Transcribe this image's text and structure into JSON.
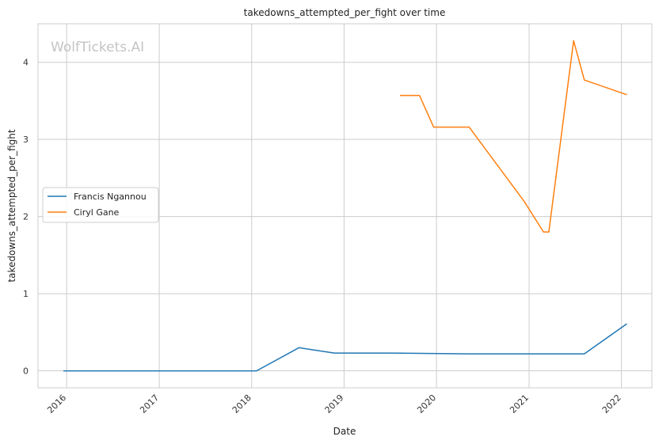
{
  "chart_data": {
    "type": "line",
    "title": "takedowns_attempted_per_fight over time",
    "xlabel": "Date",
    "ylabel": "takedowns_attempted_per_fight",
    "watermark": "WolfTickets.AI",
    "x_ticks": [
      "2016",
      "2017",
      "2018",
      "2019",
      "2020",
      "2021",
      "2022"
    ],
    "y_ticks": [
      "0",
      "1",
      "2",
      "3",
      "4"
    ],
    "xlim": [
      "2015-09-10",
      "2022-05-01"
    ],
    "ylim": [
      -0.22,
      4.5
    ],
    "grid": true,
    "legend_position": "center-left",
    "series": [
      {
        "name": "Francis Ngannou",
        "color": "#1f77b4",
        "points": [
          [
            "2015-12-19",
            0.0
          ],
          [
            "2016-04-10",
            0.0
          ],
          [
            "2016-07-20",
            0.0
          ],
          [
            "2016-12-09",
            0.0
          ],
          [
            "2017-01-28",
            0.0
          ],
          [
            "2018-01-20",
            0.0
          ],
          [
            "2018-07-07",
            0.3
          ],
          [
            "2018-11-24",
            0.23
          ],
          [
            "2019-03-30",
            0.23
          ],
          [
            "2019-06-29",
            0.23
          ],
          [
            "2020-05-09",
            0.22
          ],
          [
            "2021-03-27",
            0.22
          ],
          [
            "2021-08-07",
            0.22
          ],
          [
            "2022-01-22",
            0.61
          ]
        ]
      },
      {
        "name": "Ciryl Gane",
        "color": "#ff7f0e",
        "points": [
          [
            "2019-08-10",
            3.57
          ],
          [
            "2019-10-26",
            3.57
          ],
          [
            "2019-12-21",
            3.16
          ],
          [
            "2020-05-09",
            3.16
          ],
          [
            "2020-12-12",
            2.2
          ],
          [
            "2021-02-27",
            1.8
          ],
          [
            "2021-03-20",
            1.8
          ],
          [
            "2021-06-26",
            4.28
          ],
          [
            "2021-08-07",
            3.77
          ],
          [
            "2022-01-22",
            3.58
          ]
        ]
      }
    ]
  }
}
